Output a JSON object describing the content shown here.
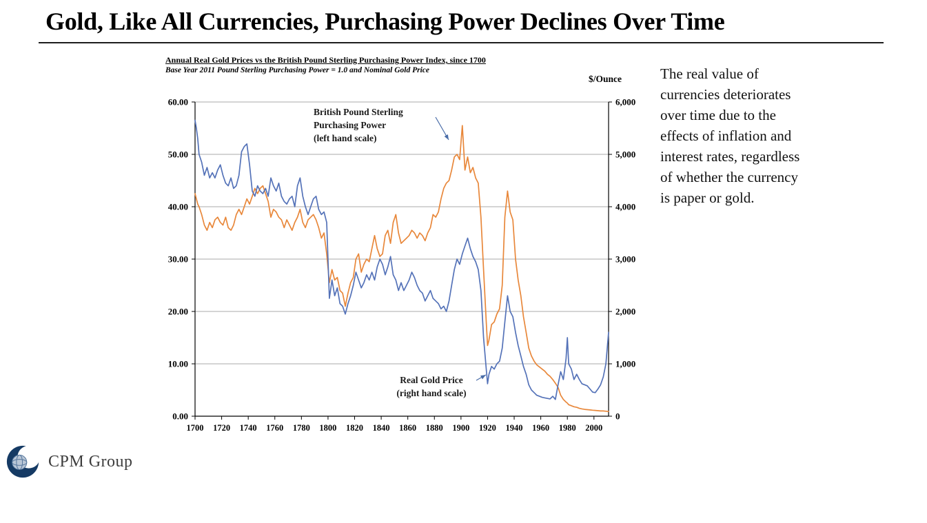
{
  "slide": {
    "title": "Gold, Like All Currencies, Purchasing Power Declines Over Time",
    "commentary": "The real value of currencies deteriorates over time due to the effects of inflation and interest rates, regardless of whether the currency is paper or gold.",
    "logo_text": "CPM Group"
  },
  "chart_data": {
    "type": "line",
    "title": "Annual Real Gold Prices vs the British Pound Sterling Purchasing Power Index, since 1700",
    "subtitle": "Base Year 2011 Pound Sterling Purchasing Power = 1.0 and Nominal Gold Price",
    "right_axis_title": "$/Ounce",
    "grid": "horizontal",
    "legend": "inline-annotations",
    "x_range": [
      1700,
      2011
    ],
    "x_tick_values": [
      1700,
      1720,
      1740,
      1760,
      1780,
      1800,
      1820,
      1840,
      1860,
      1880,
      1900,
      1920,
      1940,
      1960,
      1980,
      2000
    ],
    "x_tick_labels": [
      "1700",
      "1720",
      "1740",
      "1760",
      "1780",
      "1800",
      "1820",
      "1840",
      "1860",
      "1880",
      "1900",
      "1920",
      "1940",
      "1960",
      "1980",
      "2000"
    ],
    "left_axis": {
      "range": [
        0,
        60
      ],
      "tick_labels": [
        "0.00",
        "10.00",
        "20.00",
        "30.00",
        "40.00",
        "50.00",
        "60.00"
      ]
    },
    "right_axis": {
      "range": [
        0,
        6000
      ],
      "tick_labels": [
        "0",
        "1,000",
        "2,000",
        "3,000",
        "4,000",
        "5,000",
        "6,000"
      ]
    },
    "annotations": [
      {
        "id": "pound-label",
        "lines": [
          "British Pound Sterling",
          "Purchasing Power",
          "(left hand scale)"
        ]
      },
      {
        "id": "gold-label",
        "lines": [
          "Real Gold Price",
          "(right hand scale)"
        ]
      }
    ],
    "x": [
      1700,
      1701,
      1702,
      1703,
      1705,
      1707,
      1709,
      1711,
      1713,
      1715,
      1717,
      1719,
      1721,
      1723,
      1725,
      1727,
      1729,
      1731,
      1733,
      1735,
      1737,
      1739,
      1741,
      1743,
      1745,
      1747,
      1749,
      1751,
      1753,
      1755,
      1757,
      1759,
      1761,
      1763,
      1765,
      1767,
      1769,
      1771,
      1773,
      1775,
      1777,
      1779,
      1781,
      1783,
      1785,
      1787,
      1789,
      1791,
      1793,
      1795,
      1797,
      1799,
      1801,
      1803,
      1805,
      1807,
      1809,
      1811,
      1813,
      1815,
      1817,
      1819,
      1821,
      1823,
      1825,
      1827,
      1829,
      1831,
      1833,
      1835,
      1837,
      1839,
      1841,
      1843,
      1845,
      1847,
      1849,
      1851,
      1853,
      1855,
      1857,
      1859,
      1861,
      1863,
      1865,
      1867,
      1869,
      1871,
      1873,
      1875,
      1877,
      1879,
      1881,
      1883,
      1885,
      1887,
      1889,
      1891,
      1893,
      1895,
      1897,
      1899,
      1901,
      1903,
      1905,
      1907,
      1909,
      1911,
      1913,
      1915,
      1917,
      1919,
      1920,
      1921,
      1923,
      1925,
      1927,
      1929,
      1931,
      1933,
      1935,
      1937,
      1939,
      1941,
      1943,
      1945,
      1947,
      1949,
      1951,
      1953,
      1955,
      1957,
      1959,
      1961,
      1963,
      1965,
      1967,
      1969,
      1971,
      1973,
      1975,
      1977,
      1979,
      1980,
      1981,
      1983,
      1985,
      1987,
      1989,
      1991,
      1993,
      1995,
      1997,
      1999,
      2001,
      2003,
      2005,
      2007,
      2009,
      2011
    ],
    "series": [
      {
        "name": "British Pound Sterling Purchasing Power",
        "axis": "left",
        "color": "#e8873a",
        "values": [
          42.5,
          41.5,
          40.5,
          40,
          38.5,
          36.5,
          35.5,
          37,
          36,
          37.5,
          38,
          37,
          36.5,
          38,
          36,
          35.5,
          36.5,
          38.5,
          39.5,
          38.5,
          40,
          41.5,
          40.5,
          42,
          43.5,
          42.5,
          43.5,
          44,
          42.5,
          41,
          38,
          39.5,
          39,
          38,
          37.5,
          36,
          37.5,
          36.5,
          35.5,
          37,
          38,
          39.5,
          37,
          36,
          37.5,
          38,
          38.5,
          37.5,
          36,
          34,
          35,
          31,
          25.5,
          28,
          26,
          26.5,
          24,
          23.5,
          21,
          23.5,
          25.5,
          26.5,
          30,
          31,
          27.5,
          29,
          30,
          29.5,
          32,
          34.5,
          32,
          30.5,
          31,
          34.5,
          35.5,
          33,
          37,
          38.5,
          35,
          33,
          33.5,
          34,
          34.5,
          35.5,
          35,
          34,
          35,
          34.5,
          33.5,
          35,
          36,
          38.5,
          38,
          39,
          41.5,
          43.5,
          44.5,
          45,
          47,
          49.5,
          50,
          49,
          55.5,
          47,
          49.5,
          46.5,
          47.5,
          45.5,
          44.5,
          38,
          28,
          18,
          13.5,
          14.5,
          17.5,
          18,
          19.5,
          20.5,
          25,
          38,
          43,
          39,
          37.5,
          30,
          26,
          23,
          19,
          16,
          13,
          11.5,
          10.5,
          9.8,
          9.4,
          9,
          8.6,
          8,
          7.6,
          7,
          6.3,
          5.5,
          4,
          3.2,
          2.7,
          2.5,
          2.2,
          2,
          1.8,
          1.7,
          1.5,
          1.4,
          1.3,
          1.25,
          1.2,
          1.15,
          1.1,
          1.05,
          1,
          1,
          0.95,
          0.9
        ]
      },
      {
        "name": "Real Gold Price",
        "axis": "right",
        "color": "#5472b8",
        "values": [
          5650,
          5500,
          5300,
          5000,
          4850,
          4600,
          4750,
          4550,
          4650,
          4550,
          4700,
          4800,
          4600,
          4450,
          4400,
          4550,
          4350,
          4400,
          4600,
          5050,
          5150,
          5200,
          4800,
          4300,
          4200,
          4400,
          4300,
          4250,
          4350,
          4200,
          4550,
          4400,
          4300,
          4450,
          4200,
          4100,
          4050,
          4150,
          4200,
          4000,
          4400,
          4550,
          4200,
          4000,
          3850,
          4000,
          4150,
          4200,
          3950,
          3850,
          3900,
          3700,
          2250,
          2600,
          2300,
          2450,
          2150,
          2100,
          1950,
          2150,
          2300,
          2500,
          2750,
          2600,
          2450,
          2550,
          2700,
          2600,
          2750,
          2600,
          2850,
          3000,
          2900,
          2700,
          2850,
          3050,
          2700,
          2600,
          2400,
          2550,
          2400,
          2500,
          2600,
          2750,
          2650,
          2500,
          2400,
          2350,
          2200,
          2300,
          2400,
          2250,
          2200,
          2150,
          2050,
          2100,
          2000,
          2200,
          2500,
          2800,
          3000,
          2900,
          3100,
          3250,
          3400,
          3200,
          3050,
          2950,
          2800,
          2400,
          1500,
          900,
          620,
          800,
          950,
          900,
          1000,
          1050,
          1300,
          1800,
          2300,
          2000,
          1900,
          1600,
          1350,
          1150,
          950,
          800,
          600,
          500,
          450,
          400,
          380,
          360,
          350,
          340,
          330,
          380,
          320,
          600,
          850,
          700,
          1100,
          1500,
          1000,
          900,
          700,
          800,
          700,
          620,
          600,
          580,
          520,
          460,
          450,
          520,
          600,
          750,
          1000,
          1600
        ]
      }
    ]
  }
}
